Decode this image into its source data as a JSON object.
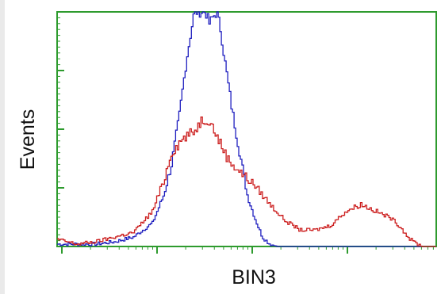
{
  "chart_data": {
    "type": "line",
    "title": "",
    "xlabel": "BIN3",
    "ylabel": "Events",
    "xscale": "log",
    "xlim": [
      0,
      1
    ],
    "ylim": [
      0,
      1
    ],
    "tick_labels_shown": false,
    "grid": false,
    "legend": "none",
    "colors": {
      "frame": "#2e9b2e",
      "background": "#ffffff",
      "text": "#111111"
    },
    "series": [
      {
        "color": "#1f1fbf",
        "x": [
          0.0,
          0.1,
          0.15,
          0.2,
          0.25,
          0.28,
          0.3,
          0.32,
          0.34,
          0.36,
          0.37,
          0.38,
          0.39,
          0.4,
          0.41,
          0.42,
          0.43,
          0.44,
          0.46,
          0.48,
          0.5,
          0.52,
          0.54,
          0.56,
          0.58,
          0.6,
          0.7,
          0.8,
          0.9,
          1.0
        ],
        "y": [
          0.01,
          0.01,
          0.02,
          0.04,
          0.1,
          0.22,
          0.35,
          0.55,
          0.8,
          1.0,
          1.0,
          1.0,
          1.0,
          0.95,
          0.98,
          1.0,
          0.92,
          0.8,
          0.58,
          0.4,
          0.22,
          0.12,
          0.04,
          0.01,
          0.0,
          0.0,
          0.0,
          0.0,
          0.0,
          0.0
        ]
      },
      {
        "color": "#cc1f1f",
        "x": [
          0.0,
          0.05,
          0.1,
          0.15,
          0.2,
          0.25,
          0.28,
          0.3,
          0.33,
          0.36,
          0.38,
          0.4,
          0.42,
          0.45,
          0.48,
          0.52,
          0.56,
          0.6,
          0.64,
          0.68,
          0.72,
          0.76,
          0.8,
          0.84,
          0.88,
          0.9,
          0.93,
          0.96,
          0.98,
          1.0
        ],
        "y": [
          0.03,
          0.01,
          0.02,
          0.04,
          0.06,
          0.15,
          0.28,
          0.4,
          0.46,
          0.49,
          0.54,
          0.54,
          0.47,
          0.37,
          0.32,
          0.26,
          0.18,
          0.11,
          0.07,
          0.07,
          0.09,
          0.15,
          0.18,
          0.15,
          0.12,
          0.09,
          0.03,
          0.0,
          0.0,
          0.0
        ]
      }
    ]
  }
}
